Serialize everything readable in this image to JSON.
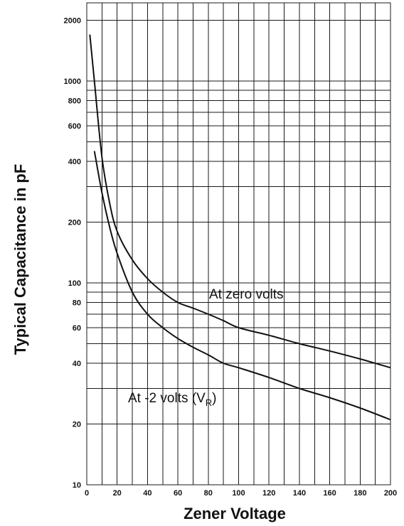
{
  "chart_data": {
    "type": "line",
    "title": "",
    "xlabel": "Zener Voltage",
    "ylabel": "Typical Capacitance in pF",
    "xlim": [
      0,
      200
    ],
    "ylim": [
      10,
      2500
    ],
    "y_scale": "log",
    "grid": true,
    "x_ticks": [
      "0",
      "20",
      "40",
      "60",
      "80",
      "100",
      "120",
      "140",
      "160",
      "180",
      "200"
    ],
    "y_ticks": [
      "10",
      "20",
      "40",
      "60",
      "80",
      "100",
      "200",
      "400",
      "600",
      "800",
      "1000",
      "2000"
    ],
    "series": [
      {
        "name": "At zero volts",
        "x": [
          2,
          5,
          10,
          15,
          20,
          30,
          40,
          50,
          60,
          70,
          80,
          90,
          100,
          120,
          140,
          160,
          180,
          200
        ],
        "y": [
          1700,
          1000,
          420,
          250,
          180,
          130,
          105,
          90,
          80,
          75,
          70,
          65,
          60,
          55,
          50,
          46,
          42,
          38
        ]
      },
      {
        "name": "At -2 volts (VR)",
        "x": [
          5,
          10,
          15,
          20,
          30,
          40,
          50,
          60,
          70,
          80,
          90,
          100,
          120,
          140,
          160,
          180,
          200
        ],
        "y": [
          450,
          280,
          190,
          140,
          90,
          70,
          60,
          53,
          48,
          44,
          40,
          38,
          34,
          30,
          27,
          24,
          21
        ]
      }
    ]
  }
}
